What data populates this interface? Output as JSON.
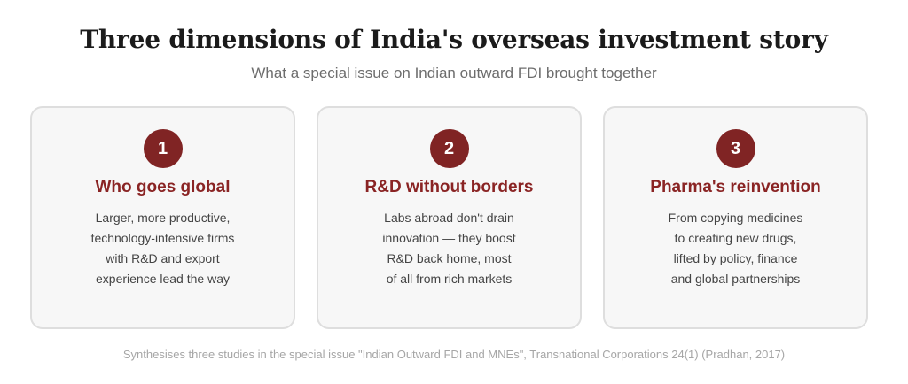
{
  "header": {
    "title": "Three dimensions of India's overseas investment story",
    "subtitle": "What a special issue on Indian outward FDI brought together"
  },
  "cards": [
    {
      "number": "1",
      "title": "Who goes global",
      "lines": [
        "Larger, more productive,",
        "technology-intensive firms",
        "with R&D and export",
        "experience lead the way"
      ]
    },
    {
      "number": "2",
      "title": "R&D without borders",
      "lines": [
        "Labs abroad don't drain",
        "innovation — they boost",
        "R&D back home, most",
        "of all from rich markets"
      ]
    },
    {
      "number": "3",
      "title": "Pharma's reinvention",
      "lines": [
        "From copying medicines",
        "to creating new drugs,",
        "lifted by policy, finance",
        "and global partnerships"
      ]
    }
  ],
  "footnote": "Synthesises three studies in the special issue \"Indian Outward FDI and MNEs\", Transnational Corporations 24(1) (Pradhan, 2017)",
  "colors": {
    "accent": "#802424",
    "card_title": "#8a2424",
    "card_background": "#f7f7f7",
    "card_border": "#dedede"
  }
}
